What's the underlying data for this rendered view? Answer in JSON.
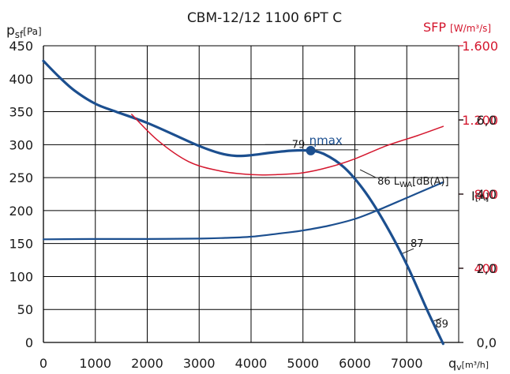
{
  "chart_data": {
    "type": "line",
    "title": "CBM-12/12 1100 6PT C",
    "axes": {
      "x": {
        "label_main": "q",
        "label_sub": "v",
        "label_unit": "[m³/h]",
        "range": [
          0,
          8000
        ],
        "ticks": [
          "0",
          "1000",
          "2000",
          "3000",
          "4000",
          "5000",
          "6000",
          "7000"
        ]
      },
      "y_left": {
        "label_main": "p",
        "label_sub": "sf",
        "label_unit": "[Pa]",
        "range": [
          0,
          450
        ],
        "ticks": [
          "0",
          "50",
          "100",
          "150",
          "200",
          "250",
          "300",
          "350",
          "400",
          "450"
        ]
      },
      "y_right_sfp": {
        "label_main": "SFP",
        "label_unit": "[W/m³/s]",
        "range": [
          0,
          1600
        ],
        "ticks": [
          "400",
          "800",
          "1.200",
          "1.600"
        ],
        "color": "#d4172e"
      },
      "y_right_current": {
        "label_main": "I",
        "label_unit": "[A]",
        "range": [
          0,
          8
        ],
        "ticks": [
          "0,0",
          "2,0",
          "4,0",
          "6,0"
        ]
      }
    },
    "grid": true,
    "series": [
      {
        "axis": "left",
        "color": "#1c4f8f",
        "x": [
          0,
          300,
          600,
          1000,
          1400,
          2000,
          2600,
          3000,
          3400,
          3700,
          4000,
          4400,
          4800,
          5100,
          5400,
          5800,
          6200,
          6600,
          7000,
          7400,
          7700
        ],
        "y": [
          427,
          403,
          382,
          362,
          350,
          333,
          312,
          298,
          287,
          283,
          284,
          288,
          291,
          291,
          286,
          265,
          228,
          178,
          118,
          48,
          -2
        ]
      },
      {
        "axis": "right_sfp",
        "color": "#d4172e",
        "x": [
          1700,
          2200,
          2800,
          3400,
          4000,
          4500,
          5000,
          5500,
          6000,
          6600,
          7200,
          7700
        ],
        "y": [
          1230,
          1090,
          975,
          925,
          905,
          905,
          915,
          945,
          990,
          1060,
          1115,
          1165
        ]
      },
      {
        "axis": "right_current",
        "color": "#1c4f8f",
        "x": [
          0,
          1000,
          2000,
          3000,
          3500,
          4000,
          4500,
          5000,
          5500,
          6000,
          6500,
          7000,
          7500,
          7700
        ],
        "y": [
          2.78,
          2.79,
          2.79,
          2.8,
          2.82,
          2.85,
          2.93,
          3.02,
          3.15,
          3.33,
          3.6,
          3.9,
          4.2,
          4.32
        ]
      }
    ],
    "annotations": {
      "eta_label": "ηmax",
      "eta_point": {
        "x": 5150,
        "y": 291
      },
      "lwa_79": "79",
      "lwa_86": "86 L",
      "lwa_86_sub": "WA",
      "lwa_86_unit": "[dB(A)]",
      "lwa_87": "87",
      "lwa_89": "89"
    }
  }
}
